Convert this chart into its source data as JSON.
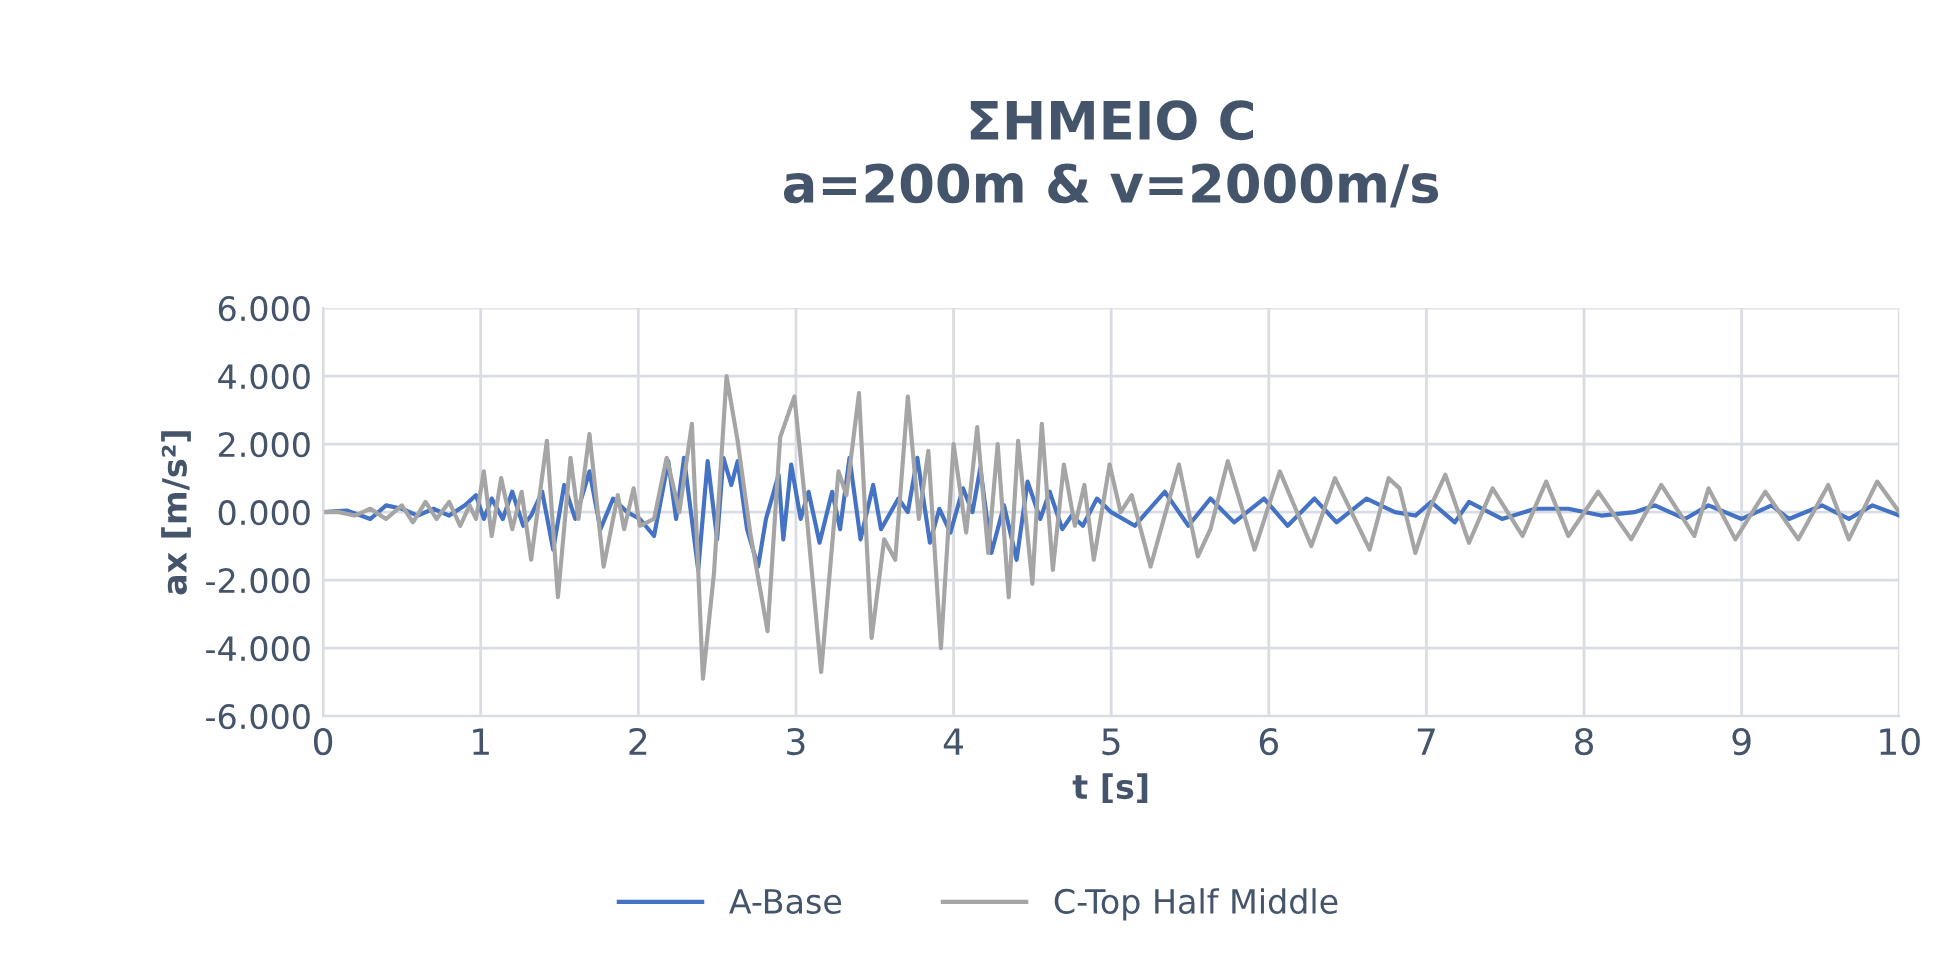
{
  "chart_data": {
    "type": "line",
    "title": "ΣΗΜΕΙΟ C\na=200m & v=2000m/s",
    "xlabel": "t [s]",
    "ylabel": "ax [m/s²]",
    "xlim": [
      0,
      10
    ],
    "xticks": [
      0,
      1,
      2,
      3,
      4,
      5,
      6,
      7,
      8,
      9,
      10
    ],
    "ylim": [
      -6,
      6
    ],
    "yticks": [
      {
        "value": -6,
        "label": "-6.000"
      },
      {
        "value": -4,
        "label": "-4.000"
      },
      {
        "value": -2,
        "label": "-2.000"
      },
      {
        "value": 0,
        "label": "0.000"
      },
      {
        "value": 2,
        "label": "2.000"
      },
      {
        "value": 4,
        "label": "4.000"
      },
      {
        "value": 6,
        "label": "6.000"
      }
    ],
    "grid": true,
    "legend": "bottom",
    "marker": "none",
    "line_style": "solid",
    "series": [
      {
        "name": "A-Base",
        "color": "#4472c4",
        "x": [
          0,
          0.15,
          0.3,
          0.4,
          0.5,
          0.6,
          0.7,
          0.8,
          0.9,
          0.97,
          1.02,
          1.07,
          1.14,
          1.2,
          1.27,
          1.32,
          1.39,
          1.46,
          1.53,
          1.6,
          1.69,
          1.76,
          1.84,
          1.93,
          2.01,
          2.1,
          2.19,
          2.24,
          2.29,
          2.38,
          2.44,
          2.5,
          2.54,
          2.59,
          2.63,
          2.69,
          2.76,
          2.81,
          2.89,
          2.92,
          2.97,
          3.03,
          3.08,
          3.15,
          3.23,
          3.28,
          3.34,
          3.41,
          3.49,
          3.54,
          3.65,
          3.71,
          3.77,
          3.85,
          3.91,
          3.98,
          4.06,
          4.12,
          4.17,
          4.24,
          4.32,
          4.4,
          4.47,
          4.55,
          4.61,
          4.69,
          4.75,
          4.82,
          4.91,
          5.0,
          5.15,
          5.34,
          5.49,
          5.63,
          5.78,
          5.97,
          6.12,
          6.29,
          6.43,
          6.62,
          6.8,
          6.93,
          7.03,
          7.18,
          7.27,
          7.48,
          7.69,
          7.9,
          8.11,
          8.32,
          8.45,
          8.64,
          8.79,
          9.0,
          9.19,
          9.3,
          9.51,
          9.68,
          9.83,
          10
        ],
        "values": [
          0,
          0.05,
          -0.2,
          0.2,
          0.1,
          -0.1,
          0.1,
          -0.1,
          0.2,
          0.5,
          -0.2,
          0.4,
          -0.2,
          0.6,
          -0.4,
          -0.1,
          0.6,
          -1.1,
          0.8,
          -0.2,
          1.2,
          -0.5,
          0.4,
          0,
          -0.2,
          -0.7,
          1.5,
          -0.2,
          1.6,
          -1.7,
          1.5,
          -0.8,
          1.6,
          0.8,
          1.5,
          -0.5,
          -1.6,
          -0.2,
          1.1,
          -0.8,
          1.4,
          -0.2,
          0.6,
          -0.9,
          0.6,
          -0.5,
          1.6,
          -0.8,
          0.8,
          -0.5,
          0.4,
          0,
          1.6,
          -0.9,
          0.1,
          -0.6,
          0.7,
          0,
          1.3,
          -1.2,
          0.2,
          -1.4,
          0.9,
          -0.2,
          0.6,
          -0.5,
          -0.1,
          -0.4,
          0.4,
          0,
          -0.4,
          0.6,
          -0.4,
          0.4,
          -0.3,
          0.4,
          -0.4,
          0.4,
          -0.3,
          0.4,
          0,
          -0.1,
          0.3,
          -0.3,
          0.3,
          -0.2,
          0.1,
          0.1,
          -0.1,
          0,
          0.2,
          -0.2,
          0.2,
          -0.2,
          0.2,
          -0.2,
          0.2,
          -0.2,
          0.2,
          -0.1
        ]
      },
      {
        "name": "C-Top Half Middle",
        "color": "#a5a5a5",
        "x": [
          0,
          0.1,
          0.2,
          0.3,
          0.4,
          0.5,
          0.57,
          0.65,
          0.72,
          0.8,
          0.87,
          0.93,
          0.97,
          1.02,
          1.07,
          1.13,
          1.2,
          1.26,
          1.32,
          1.42,
          1.49,
          1.57,
          1.62,
          1.69,
          1.78,
          1.87,
          1.91,
          1.97,
          2.01,
          2.1,
          2.18,
          2.26,
          2.34,
          2.41,
          2.48,
          2.56,
          2.63,
          2.71,
          2.82,
          2.9,
          2.99,
          3.07,
          3.16,
          3.27,
          3.32,
          3.4,
          3.48,
          3.56,
          3.63,
          3.71,
          3.78,
          3.84,
          3.92,
          4.0,
          4.08,
          4.15,
          4.22,
          4.28,
          4.35,
          4.41,
          4.5,
          4.56,
          4.63,
          4.7,
          4.77,
          4.83,
          4.89,
          4.99,
          5.06,
          5.13,
          5.25,
          5.43,
          5.55,
          5.63,
          5.74,
          5.91,
          6.07,
          6.27,
          6.42,
          6.64,
          6.76,
          6.83,
          6.93,
          7.02,
          7.12,
          7.27,
          7.42,
          7.61,
          7.76,
          7.9,
          8.09,
          8.3,
          8.49,
          8.7,
          8.79,
          8.96,
          9.15,
          9.36,
          9.55,
          9.68,
          9.86,
          10
        ],
        "values": [
          0,
          0,
          -0.1,
          0.1,
          -0.2,
          0.2,
          -0.3,
          0.3,
          -0.2,
          0.3,
          -0.4,
          0.2,
          -0.2,
          1.2,
          -0.7,
          1.0,
          -0.5,
          0.6,
          -1.4,
          2.1,
          -2.5,
          1.6,
          -0.2,
          2.3,
          -1.6,
          0.5,
          -0.5,
          0.7,
          -0.4,
          -0.2,
          1.6,
          0,
          2.6,
          -4.9,
          -1.8,
          4.0,
          2.1,
          -0.6,
          -3.5,
          2.2,
          3.4,
          -0.2,
          -4.7,
          1.2,
          0.5,
          3.5,
          -3.7,
          -0.8,
          -1.4,
          3.4,
          -0.2,
          1.8,
          -4.0,
          2.0,
          -0.6,
          2.5,
          -1.2,
          2.0,
          -2.5,
          2.1,
          -2.1,
          2.6,
          -1.7,
          1.4,
          -0.4,
          0.8,
          -1.4,
          1.4,
          0,
          0.5,
          -1.6,
          1.4,
          -1.3,
          -0.5,
          1.5,
          -1.1,
          1.2,
          -1.0,
          1.0,
          -1.1,
          1.0,
          0.7,
          -1.2,
          0.1,
          1.1,
          -0.9,
          0.7,
          -0.7,
          0.9,
          -0.7,
          0.6,
          -0.8,
          0.8,
          -0.7,
          0.7,
          -0.8,
          0.6,
          -0.8,
          0.8,
          -0.8,
          0.9,
          0
        ]
      }
    ]
  }
}
